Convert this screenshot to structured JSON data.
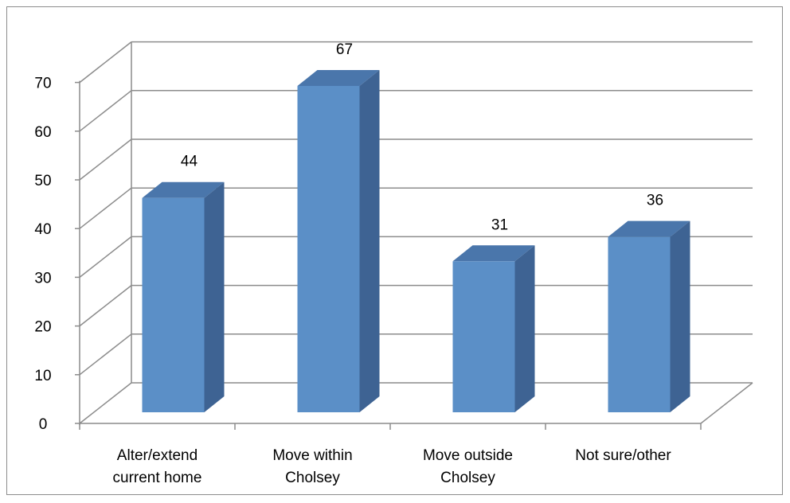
{
  "chart_data": {
    "type": "bar",
    "style": "3d-column",
    "categories": [
      [
        "Alter/extend",
        "current home"
      ],
      [
        "Move within",
        "Cholsey"
      ],
      [
        "Move outside",
        "Cholsey"
      ],
      [
        "Not sure/other"
      ]
    ],
    "values": [
      44,
      67,
      31,
      36
    ],
    "data_labels": [
      "44",
      "67",
      "31",
      "36"
    ],
    "title": "",
    "xlabel": "",
    "ylabel": "",
    "ylim": [
      0,
      70
    ],
    "yticks": [
      0,
      10,
      20,
      30,
      40,
      50,
      60,
      70
    ],
    "grid": true,
    "legend": "none",
    "colors": {
      "bar_front": "#5b8fc7",
      "bar_side": "#3e6393",
      "bar_top": "#4a76ab",
      "gridline": "#8c8c8c",
      "axis": "#8c8c8c"
    }
  }
}
